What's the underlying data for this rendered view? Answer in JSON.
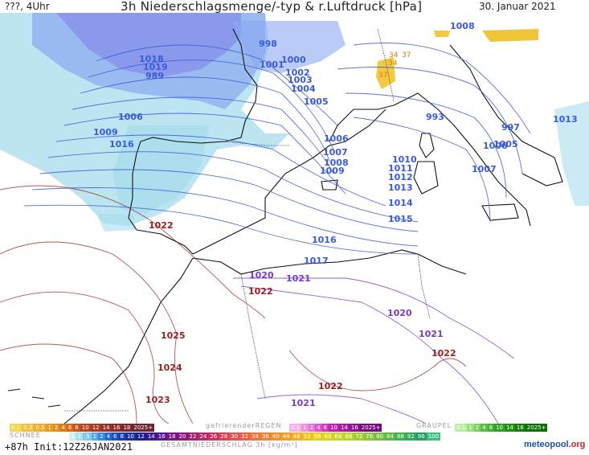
{
  "header": {
    "left": "???, 4Uhr",
    "title": "3h Niederschlagsmenge/-typ & r.Luftdruck [hPa]",
    "date": "30. Januar 2021"
  },
  "isobars_blue": [
    {
      "label": "998"
    },
    {
      "label": "1000"
    },
    {
      "label": "1001"
    },
    {
      "label": "1002"
    },
    {
      "label": "1003"
    },
    {
      "label": "1004"
    },
    {
      "label": "1005"
    },
    {
      "label": "1006"
    },
    {
      "label": "1007"
    },
    {
      "label": "1008"
    },
    {
      "label": "1009"
    },
    {
      "label": "1010"
    },
    {
      "label": "1011"
    },
    {
      "label": "1012"
    },
    {
      "label": "1013"
    },
    {
      "label": "1014"
    },
    {
      "label": "1015"
    },
    {
      "label": "1016"
    },
    {
      "label": "1017"
    },
    {
      "label": "1018"
    },
    {
      "label": "1019"
    },
    {
      "label": "989"
    },
    {
      "label": "993"
    },
    {
      "label": "997"
    },
    {
      "label": "1005"
    },
    {
      "label": "1006"
    },
    {
      "label": "1007"
    },
    {
      "label": "1008"
    },
    {
      "label": "1009"
    },
    {
      "label": "1006"
    },
    {
      "label": "1016"
    },
    {
      "label": "1013"
    },
    {
      "label": "1006"
    }
  ],
  "isobars_purple": [
    {
      "label": "1020"
    },
    {
      "label": "1021"
    },
    {
      "label": "1020"
    },
    {
      "label": "1021"
    },
    {
      "label": "1021"
    }
  ],
  "isobars_red": [
    {
      "label": "1022"
    },
    {
      "label": "1022"
    },
    {
      "label": "1025"
    },
    {
      "label": "1024"
    },
    {
      "label": "1023"
    },
    {
      "label": "1022"
    },
    {
      "label": "1022"
    }
  ],
  "orange_labels": [
    "34",
    "37",
    "34",
    "37"
  ],
  "legend": {
    "snow_label": "SCHNEE",
    "snow_top_values": [
      "0.1",
      "0.3",
      "0.5",
      "1",
      "2",
      "4",
      "6",
      "8",
      "10",
      "12",
      "14",
      "16",
      "18",
      "2025+"
    ],
    "freezing_rain_label": "gefrierenderREGEN",
    "freezing_rain_values": [
      "0.1",
      "1",
      "2",
      "4",
      "8",
      "10",
      "14",
      "16",
      "2025+"
    ],
    "graupel_label": "GRAUPEL",
    "graupel_values": [
      "0.1",
      "1",
      "2",
      "4",
      "8",
      "10",
      "14",
      "16",
      "2025+"
    ],
    "rain_values": [
      "1",
      "2",
      ".5",
      "1",
      "2",
      "4",
      "6",
      "8",
      "10",
      "12",
      "14",
      "16",
      "18",
      "20",
      "22",
      "24",
      "26",
      "28",
      "30",
      "32",
      "34",
      "36",
      "40",
      "44",
      "48",
      "52",
      "56",
      "60",
      "64",
      "68",
      "72",
      "76",
      "80",
      "84",
      "88",
      "92",
      "96",
      "100"
    ],
    "total_label": "GESAMTNIEDERSCHLAG 3h [kg/m²]"
  },
  "footer": {
    "init": "+87h Init:12Z26JAN2021",
    "logo_main": "meteopool",
    "logo_tld": ".org"
  },
  "colors": {
    "blue_isobar": "#3a5ad8",
    "purple_isobar": "#7a3ac8",
    "red_isobar": "#9a2020",
    "precip_light": "#a6dcec",
    "precip_blue": "#8aa8f0",
    "precip_violet": "#7d7de8",
    "snow_yellow": "#f0c020",
    "coast": "#111111"
  }
}
